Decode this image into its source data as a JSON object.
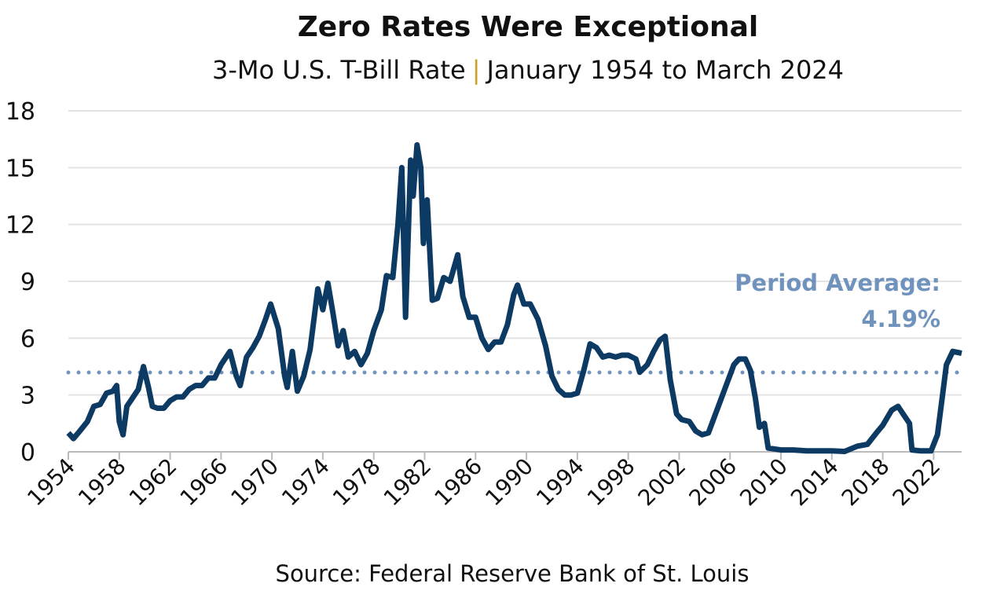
{
  "chart_data": {
    "type": "line",
    "title": "Zero Rates Were Exceptional",
    "subtitle": [
      "3-Mo U.S. T-Bill Rate",
      "|",
      "January 1954 to March 2024"
    ],
    "source": "Source: Federal Reserve Bank of St. Louis",
    "average": {
      "value": 4.19,
      "label": "Period Average:",
      "value_label": "4.19%",
      "color": "#7093bd"
    },
    "x": [
      1954.0,
      1954.4,
      1954.9,
      1955.5,
      1956.0,
      1956.5,
      1957.0,
      1957.5,
      1957.8,
      1958.0,
      1958.3,
      1958.6,
      1959.0,
      1959.5,
      1959.9,
      1960.3,
      1960.6,
      1961.0,
      1961.5,
      1962.0,
      1962.5,
      1963.0,
      1963.5,
      1964.0,
      1964.5,
      1965.0,
      1965.5,
      1966.0,
      1966.7,
      1967.2,
      1967.5,
      1968.0,
      1968.5,
      1969.0,
      1969.5,
      1969.9,
      1970.5,
      1971.0,
      1971.2,
      1971.6,
      1972.0,
      1972.5,
      1973.0,
      1973.6,
      1974.0,
      1974.4,
      1974.8,
      1975.2,
      1975.6,
      1976.0,
      1976.5,
      1977.0,
      1977.5,
      1978.0,
      1978.6,
      1979.0,
      1979.5,
      1979.9,
      1980.2,
      1980.5,
      1980.9,
      1981.1,
      1981.4,
      1981.7,
      1981.9,
      1982.2,
      1982.6,
      1983.0,
      1983.5,
      1984.0,
      1984.6,
      1985.0,
      1985.5,
      1986.0,
      1986.5,
      1987.0,
      1987.5,
      1988.0,
      1988.5,
      1989.0,
      1989.3,
      1989.8,
      1990.3,
      1990.9,
      1991.5,
      1992.0,
      1992.5,
      1993.0,
      1993.5,
      1994.0,
      1994.5,
      1995.0,
      1995.5,
      1996.0,
      1996.5,
      1997.0,
      1997.5,
      1998.0,
      1998.6,
      1998.9,
      1999.5,
      2000.0,
      2000.5,
      2000.9,
      2001.3,
      2001.8,
      2002.2,
      2002.8,
      2003.3,
      2003.8,
      2004.3,
      2004.8,
      2005.3,
      2005.8,
      2006.3,
      2006.7,
      2007.2,
      2007.6,
      2008.0,
      2008.3,
      2008.7,
      2009.0,
      2010.0,
      2011.0,
      2012.0,
      2013.0,
      2014.0,
      2015.0,
      2016.0,
      2016.8,
      2017.5,
      2018.0,
      2018.7,
      2019.2,
      2019.7,
      2020.1,
      2020.3,
      2021.0,
      2021.8,
      2022.3,
      2022.7,
      2023.0,
      2023.5,
      2024.2
    ],
    "series": [
      {
        "name": "3-Mo T-Bill",
        "color": "#0d3a63",
        "values": [
          1.0,
          0.7,
          1.1,
          1.6,
          2.4,
          2.5,
          3.1,
          3.2,
          3.5,
          1.6,
          0.9,
          2.4,
          2.8,
          3.3,
          4.5,
          3.4,
          2.4,
          2.3,
          2.3,
          2.7,
          2.9,
          2.9,
          3.3,
          3.5,
          3.5,
          3.9,
          3.9,
          4.6,
          5.3,
          4.0,
          3.5,
          5.0,
          5.5,
          6.1,
          7.0,
          7.8,
          6.5,
          4.0,
          3.4,
          5.3,
          3.2,
          4.0,
          5.4,
          8.6,
          7.5,
          8.9,
          7.3,
          5.6,
          6.4,
          5.0,
          5.3,
          4.6,
          5.2,
          6.4,
          7.5,
          9.3,
          9.2,
          12.0,
          15.0,
          7.1,
          15.4,
          13.5,
          16.2,
          15.0,
          11.0,
          13.3,
          8.0,
          8.1,
          9.2,
          9.0,
          10.4,
          8.2,
          7.1,
          7.1,
          6.0,
          5.4,
          5.8,
          5.8,
          6.7,
          8.3,
          8.8,
          7.8,
          7.8,
          7.0,
          5.6,
          4.0,
          3.3,
          3.0,
          3.0,
          3.1,
          4.3,
          5.7,
          5.5,
          5.0,
          5.1,
          5.0,
          5.1,
          5.1,
          4.9,
          4.2,
          4.6,
          5.3,
          5.9,
          6.1,
          3.8,
          2.0,
          1.7,
          1.6,
          1.1,
          0.9,
          1.0,
          1.9,
          2.8,
          3.7,
          4.6,
          4.9,
          4.9,
          4.3,
          2.8,
          1.3,
          1.5,
          0.2,
          0.1,
          0.1,
          0.05,
          0.05,
          0.05,
          0.02,
          0.3,
          0.4,
          1.0,
          1.4,
          2.2,
          2.4,
          1.9,
          1.5,
          0.1,
          0.05,
          0.05,
          0.9,
          3.0,
          4.6,
          5.3,
          5.2
        ]
      }
    ],
    "xlim": [
      1954,
      2024.2
    ],
    "xticks": [
      1954,
      1958,
      1962,
      1966,
      1970,
      1974,
      1978,
      1982,
      1986,
      1990,
      1994,
      1998,
      2002,
      2006,
      2010,
      2014,
      2018,
      2022
    ],
    "ylim": [
      0,
      18
    ],
    "yticks": [
      0,
      3,
      6,
      9,
      12,
      15,
      18
    ],
    "grid": true
  }
}
